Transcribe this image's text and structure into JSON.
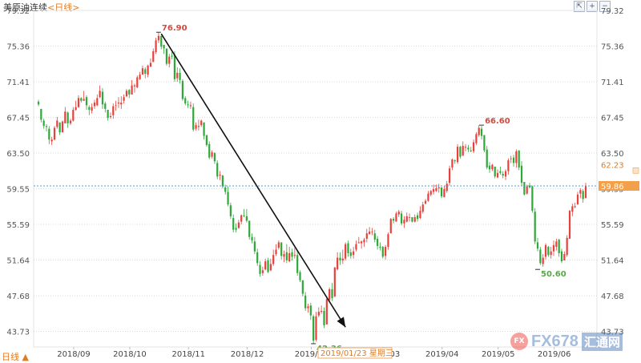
{
  "header": {
    "instrument": "美原油连续",
    "period": "<日线>"
  },
  "toolbar": [
    {
      "name": "restore-icon",
      "glyph": "⇱"
    },
    {
      "name": "zoom-in-icon",
      "glyph": "+"
    },
    {
      "name": "zoom-out-icon",
      "glyph": "−"
    }
  ],
  "period_selector": {
    "label": "日线 ▲"
  },
  "watermark": {
    "brand": "FX678",
    "cn": "汇通网",
    "logo": "FX"
  },
  "colors": {
    "up": "#e8403a",
    "down": "#2fa83a",
    "grid": "#d9d9d9",
    "crosshair": "#4aa0e0",
    "current_bg": "#f2a04b",
    "text_up": "#d24a3f",
    "text_down": "#5aa64a"
  },
  "chart_data": {
    "type": "candlestick",
    "title": "美原油连续<日线>",
    "ylim": [
      42.0,
      79.32
    ],
    "y_ticks": [
      "79.32",
      "75.36",
      "71.41",
      "67.45",
      "63.50",
      "59.55",
      "55.59",
      "51.64",
      "47.68",
      "43.73"
    ],
    "x_ticks": [
      "2018/09",
      "2018/10",
      "2018/11",
      "2018/12",
      "2019/01",
      "2019/03",
      "2019/04",
      "2019/05",
      "2019/06"
    ],
    "crosshair": {
      "price": "59.86",
      "date": "2019/01/23 星期三"
    },
    "right_labels": {
      "upper": "62.23",
      "current": "59.86"
    },
    "annotations": [
      {
        "label": "76.90",
        "value": 76.9,
        "kind": "high"
      },
      {
        "label": "42.36",
        "value": 42.36,
        "kind": "low"
      },
      {
        "label": "66.60",
        "value": 66.6,
        "kind": "high"
      },
      {
        "label": "50.60",
        "value": 50.6,
        "kind": "low"
      }
    ],
    "trend_arrow": {
      "from": 76.9,
      "to": 44.2
    },
    "ohlc": [
      [
        69.2,
        69.4,
        68.7,
        68.9
      ],
      [
        68.4,
        68.4,
        66.9,
        67.2
      ],
      [
        67.1,
        67.3,
        66.2,
        66.5
      ],
      [
        66.5,
        66.7,
        65.9,
        66.4
      ],
      [
        66.2,
        66.5,
        64.5,
        65.0
      ],
      [
        64.8,
        65.3,
        64.4,
        65.0
      ],
      [
        65.0,
        66.5,
        64.9,
        66.3
      ],
      [
        66.4,
        67.5,
        66.2,
        67.1
      ],
      [
        66.9,
        66.9,
        65.5,
        65.8
      ],
      [
        65.8,
        67.1,
        65.8,
        67.0
      ],
      [
        66.8,
        68.6,
        66.8,
        68.1
      ],
      [
        68.0,
        68.1,
        66.3,
        66.8
      ],
      [
        66.8,
        67.3,
        66.6,
        67.1
      ],
      [
        67.1,
        68.6,
        67.0,
        68.3
      ],
      [
        68.3,
        69.3,
        68.2,
        68.6
      ],
      [
        68.6,
        69.9,
        68.5,
        69.6
      ],
      [
        69.6,
        69.7,
        69.1,
        69.3
      ],
      [
        69.3,
        70.4,
        69.3,
        69.5
      ],
      [
        69.7,
        69.9,
        68.3,
        68.8
      ],
      [
        68.6,
        68.8,
        67.7,
        68.3
      ],
      [
        68.2,
        69.0,
        67.9,
        68.6
      ],
      [
        68.7,
        69.4,
        68.4,
        69.1
      ],
      [
        68.8,
        70.0,
        68.7,
        69.6
      ],
      [
        69.7,
        71.0,
        69.6,
        70.4
      ],
      [
        70.3,
        70.7,
        68.4,
        68.9
      ],
      [
        69.0,
        69.2,
        68.0,
        68.4
      ],
      [
        68.3,
        68.3,
        67.1,
        67.4
      ],
      [
        67.5,
        68.0,
        67.3,
        67.6
      ],
      [
        67.7,
        69.0,
        67.3,
        68.7
      ],
      [
        68.8,
        69.3,
        68.2,
        68.8
      ],
      [
        69.0,
        69.7,
        68.5,
        69.1
      ],
      [
        68.9,
        69.8,
        68.4,
        69.1
      ],
      [
        69.3,
        70.0,
        69.0,
        69.7
      ],
      [
        69.8,
        70.6,
        69.7,
        70.4
      ],
      [
        70.5,
        70.6,
        69.6,
        70.0
      ],
      [
        70.0,
        71.6,
        70.0,
        71.0
      ],
      [
        70.9,
        71.2,
        70.2,
        71.0
      ],
      [
        70.8,
        72.1,
        70.7,
        71.9
      ],
      [
        71.7,
        72.5,
        71.6,
        72.2
      ],
      [
        72.2,
        73.2,
        72.2,
        72.9
      ],
      [
        72.8,
        73.0,
        71.8,
        72.3
      ],
      [
        72.2,
        73.3,
        71.9,
        73.2
      ],
      [
        73.1,
        74.0,
        73.0,
        73.5
      ],
      [
        73.6,
        75.1,
        73.6,
        74.8
      ],
      [
        74.7,
        76.3,
        74.5,
        76.0
      ],
      [
        76.0,
        76.9,
        75.7,
        76.5
      ],
      [
        76.5,
        76.5,
        75.0,
        75.3
      ],
      [
        75.5,
        75.5,
        74.5,
        75.1
      ],
      [
        75.1,
        75.1,
        73.2,
        73.4
      ],
      [
        73.4,
        74.5,
        73.0,
        74.2
      ],
      [
        74.3,
        74.7,
        73.9,
        74.2
      ],
      [
        74.4,
        74.8,
        71.4,
        71.7
      ],
      [
        71.8,
        73.0,
        71.4,
        72.4
      ],
      [
        72.4,
        72.9,
        71.2,
        71.6
      ],
      [
        71.5,
        71.7,
        69.3,
        69.5
      ],
      [
        69.6,
        69.8,
        68.8,
        69.0
      ],
      [
        68.9,
        69.3,
        68.5,
        68.8
      ],
      [
        68.7,
        69.2,
        68.4,
        68.8
      ],
      [
        68.6,
        69.0,
        65.9,
        66.1
      ],
      [
        66.2,
        66.9,
        66.0,
        66.6
      ],
      [
        66.4,
        67.2,
        66.0,
        66.5
      ],
      [
        66.6,
        67.2,
        66.4,
        67.1
      ],
      [
        66.9,
        66.9,
        65.0,
        65.4
      ],
      [
        65.5,
        65.5,
        64.2,
        64.4
      ],
      [
        64.5,
        64.8,
        62.8,
        63.0
      ],
      [
        63.1,
        63.8,
        62.9,
        63.6
      ],
      [
        63.5,
        63.6,
        62.3,
        62.6
      ],
      [
        62.4,
        62.7,
        60.6,
        60.9
      ],
      [
        61.0,
        61.5,
        60.5,
        61.1
      ],
      [
        61.0,
        61.1,
        59.6,
        59.8
      ],
      [
        59.7,
        60.0,
        58.9,
        59.2
      ],
      [
        59.2,
        59.8,
        57.6,
        57.8
      ],
      [
        57.7,
        58.0,
        56.2,
        56.5
      ],
      [
        56.3,
        56.7,
        54.7,
        55.0
      ],
      [
        55.2,
        55.7,
        54.7,
        55.0
      ],
      [
        55.2,
        56.1,
        55.1,
        55.8
      ],
      [
        55.9,
        56.7,
        55.6,
        56.6
      ],
      [
        56.6,
        57.3,
        56.4,
        56.5
      ],
      [
        56.5,
        57.3,
        55.8,
        56.0
      ],
      [
        56.0,
        56.0,
        53.9,
        54.2
      ],
      [
        54.2,
        54.6,
        53.5,
        53.8
      ],
      [
        53.7,
        54.2,
        52.3,
        52.6
      ],
      [
        52.5,
        52.9,
        51.0,
        51.3
      ],
      [
        51.1,
        51.5,
        49.8,
        50.1
      ],
      [
        50.2,
        50.9,
        49.9,
        50.5
      ],
      [
        50.6,
        51.8,
        50.5,
        51.5
      ],
      [
        51.6,
        51.9,
        50.2,
        50.3
      ],
      [
        50.5,
        51.8,
        50.4,
        51.2
      ],
      [
        51.2,
        52.8,
        51.0,
        52.2
      ],
      [
        52.3,
        53.4,
        52.1,
        52.8
      ],
      [
        53.0,
        53.8,
        52.8,
        53.6
      ],
      [
        53.6,
        53.6,
        51.7,
        52.1
      ],
      [
        52.0,
        52.7,
        51.4,
        52.3
      ],
      [
        52.5,
        53.4,
        51.3,
        51.6
      ],
      [
        51.5,
        53.1,
        51.4,
        52.4
      ],
      [
        52.5,
        52.9,
        51.6,
        52.0
      ],
      [
        52.1,
        53.0,
        51.8,
        52.2
      ],
      [
        52.2,
        52.7,
        49.9,
        50.2
      ],
      [
        50.3,
        50.5,
        49.2,
        49.4
      ],
      [
        49.4,
        49.4,
        47.6,
        47.9
      ],
      [
        47.7,
        48.1,
        46.0,
        46.3
      ],
      [
        46.3,
        46.8,
        45.8,
        46.5
      ],
      [
        46.6,
        46.9,
        45.0,
        45.5
      ],
      [
        45.4,
        45.6,
        42.4,
        42.7
      ],
      [
        42.8,
        45.9,
        42.6,
        45.4
      ],
      [
        45.5,
        46.4,
        45.3,
        45.9
      ],
      [
        45.9,
        46.6,
        45.7,
        46.0
      ],
      [
        46.0,
        46.4,
        44.1,
        44.4
      ],
      [
        44.5,
        47.5,
        44.5,
        47.3
      ],
      [
        47.2,
        48.6,
        47.0,
        48.4
      ],
      [
        48.4,
        49.1,
        47.1,
        47.4
      ],
      [
        47.6,
        50.9,
        47.5,
        50.8
      ],
      [
        50.6,
        52.5,
        50.5,
        51.9
      ],
      [
        51.9,
        52.5,
        51.1,
        51.6
      ],
      [
        51.6,
        52.8,
        51.2,
        51.8
      ],
      [
        51.8,
        53.6,
        51.6,
        53.4
      ],
      [
        53.5,
        53.8,
        52.0,
        52.4
      ],
      [
        52.5,
        52.9,
        51.8,
        52.1
      ],
      [
        52.2,
        53.1,
        51.8,
        52.6
      ],
      [
        52.8,
        53.8,
        52.6,
        53.4
      ],
      [
        53.5,
        54.2,
        53.5,
        53.6
      ],
      [
        53.5,
        53.8,
        52.9,
        53.7
      ],
      [
        53.6,
        54.1,
        53.1,
        53.9
      ],
      [
        54.0,
        55.1,
        53.6,
        54.6
      ],
      [
        54.5,
        55.3,
        54.5,
        54.8
      ],
      [
        54.8,
        55.2,
        54.4,
        54.8
      ],
      [
        54.6,
        55.0,
        53.6,
        53.9
      ],
      [
        54.0,
        54.3,
        52.8,
        53.2
      ],
      [
        53.1,
        53.6,
        52.7,
        53.0
      ],
      [
        53.1,
        53.2,
        51.8,
        52.0
      ],
      [
        52.1,
        53.3,
        51.7,
        53.1
      ],
      [
        53.1,
        54.7,
        52.8,
        54.5
      ],
      [
        54.6,
        56.3,
        54.6,
        56.2
      ],
      [
        56.2,
        56.4,
        55.7,
        56.0
      ],
      [
        55.9,
        57.0,
        55.9,
        56.8
      ],
      [
        56.7,
        57.2,
        56.4,
        57.0
      ],
      [
        56.8,
        57.1,
        55.5,
        55.7
      ],
      [
        55.7,
        56.5,
        55.2,
        56.1
      ],
      [
        55.9,
        56.9,
        55.8,
        56.5
      ],
      [
        56.4,
        56.8,
        55.9,
        56.4
      ],
      [
        56.4,
        56.4,
        55.8,
        55.9
      ],
      [
        55.9,
        56.7,
        55.8,
        56.4
      ],
      [
        56.6,
        56.9,
        55.9,
        56.2
      ],
      [
        56.3,
        57.6,
        56.2,
        57.1
      ],
      [
        57.0,
        58.1,
        56.8,
        57.8
      ],
      [
        57.9,
        58.4,
        57.8,
        58.2
      ],
      [
        58.2,
        59.3,
        58.1,
        59.0
      ],
      [
        58.9,
        59.4,
        58.7,
        59.3
      ],
      [
        59.2,
        60.0,
        58.9,
        59.5
      ],
      [
        59.3,
        60.0,
        59.2,
        59.6
      ],
      [
        59.6,
        60.1,
        59.1,
        59.7
      ],
      [
        59.7,
        59.7,
        58.5,
        58.7
      ],
      [
        58.6,
        59.9,
        58.6,
        59.5
      ],
      [
        59.3,
        60.4,
        59.1,
        60.1
      ],
      [
        60.2,
        62.1,
        59.9,
        61.8
      ],
      [
        61.9,
        62.9,
        61.6,
        62.8
      ],
      [
        62.7,
        62.8,
        62.3,
        62.6
      ],
      [
        62.5,
        64.5,
        62.3,
        64.2
      ],
      [
        64.2,
        64.3,
        62.9,
        63.1
      ],
      [
        63.2,
        64.8,
        63.2,
        64.3
      ],
      [
        64.1,
        64.5,
        63.7,
        64.2
      ],
      [
        64.1,
        64.4,
        63.6,
        63.9
      ],
      [
        63.8,
        64.2,
        63.6,
        63.7
      ],
      [
        63.7,
        65.0,
        63.5,
        64.7
      ],
      [
        64.6,
        65.8,
        64.4,
        65.6
      ],
      [
        65.5,
        66.6,
        65.3,
        66.3
      ],
      [
        66.2,
        66.5,
        65.0,
        65.4
      ],
      [
        65.5,
        65.5,
        63.6,
        63.8
      ],
      [
        63.9,
        64.3,
        61.7,
        61.9
      ],
      [
        62.1,
        62.5,
        61.3,
        61.7
      ],
      [
        61.7,
        62.3,
        61.5,
        62.2
      ],
      [
        62.0,
        62.0,
        60.7,
        60.9
      ],
      [
        60.8,
        61.7,
        60.7,
        61.3
      ],
      [
        61.5,
        62.0,
        61.1,
        61.3
      ],
      [
        61.2,
        61.5,
        60.7,
        61.0
      ],
      [
        60.9,
        61.7,
        60.5,
        61.5
      ],
      [
        61.5,
        62.9,
        61.1,
        62.7
      ],
      [
        62.9,
        63.2,
        62.4,
        62.9
      ],
      [
        63.0,
        63.3,
        62.0,
        62.4
      ],
      [
        62.4,
        63.9,
        61.9,
        63.7
      ],
      [
        63.8,
        63.8,
        61.6,
        61.9
      ],
      [
        62.1,
        62.6,
        59.9,
        60.2
      ],
      [
        60.3,
        60.3,
        58.8,
        58.9
      ],
      [
        59.0,
        60.0,
        58.9,
        59.8
      ],
      [
        59.9,
        60.2,
        59.6,
        59.7
      ],
      [
        59.8,
        59.9,
        56.9,
        57.1
      ],
      [
        57.0,
        57.4,
        53.4,
        53.7
      ],
      [
        53.6,
        54.1,
        52.6,
        52.9
      ],
      [
        52.8,
        53.1,
        51.1,
        51.3
      ],
      [
        51.2,
        52.3,
        50.9,
        51.9
      ],
      [
        52.0,
        53.5,
        51.7,
        53.3
      ],
      [
        53.1,
        53.2,
        52.0,
        52.2
      ],
      [
        52.2,
        53.1,
        51.8,
        52.6
      ],
      [
        52.6,
        53.8,
        52.1,
        53.3
      ],
      [
        53.1,
        54.0,
        52.7,
        53.7
      ],
      [
        53.9,
        54.0,
        52.0,
        52.4
      ],
      [
        52.6,
        52.9,
        51.3,
        51.5
      ],
      [
        51.6,
        52.6,
        51.6,
        52.3
      ],
      [
        52.2,
        54.4,
        52.0,
        54.1
      ],
      [
        54.0,
        57.2,
        54.0,
        57.1
      ],
      [
        57.0,
        57.9,
        56.5,
        57.6
      ],
      [
        57.5,
        58.0,
        57.4,
        57.6
      ],
      [
        57.8,
        59.2,
        57.8,
        58.9
      ],
      [
        59.0,
        59.6,
        58.5,
        59.4
      ],
      [
        59.3,
        59.5,
        58.0,
        58.4
      ],
      [
        58.5,
        60.2,
        58.5,
        59.9
      ]
    ]
  }
}
